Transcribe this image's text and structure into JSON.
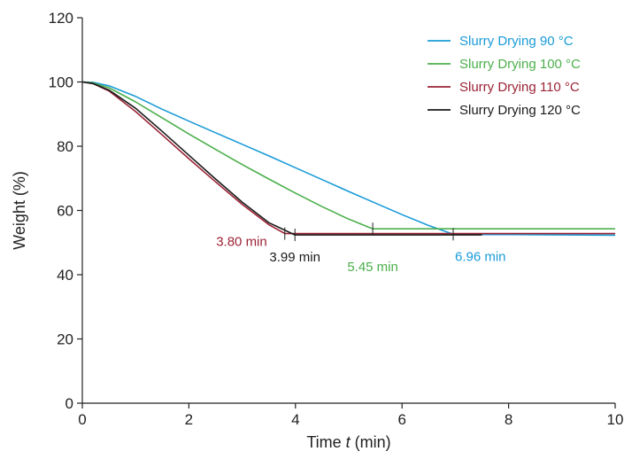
{
  "chart_data": {
    "type": "line",
    "title": "",
    "xlabel_prefix": "Time ",
    "xlabel_var": "t",
    "xlabel_suffix": " (min)",
    "ylabel": "Weight (%)",
    "xlim": [
      0,
      10
    ],
    "ylim": [
      0,
      120
    ],
    "x_ticks": [
      0,
      2,
      4,
      6,
      8,
      10
    ],
    "y_ticks": [
      0,
      20,
      40,
      60,
      80,
      100,
      120
    ],
    "grid": false,
    "legend_position": "top-right",
    "series": [
      {
        "name": "Slurry Drying 90 °C",
        "color": "#1a9bd7",
        "x": [
          0,
          0.2,
          0.5,
          1,
          1.5,
          2,
          2.5,
          3,
          3.5,
          4,
          4.5,
          5,
          5.5,
          6,
          6.5,
          6.96,
          7.5,
          8,
          9,
          10
        ],
        "y": [
          100,
          99.9,
          98.8,
          95.5,
          91.5,
          87.8,
          84.2,
          80.6,
          77,
          73.3,
          69.6,
          65.9,
          62.3,
          58.7,
          55.3,
          52.6,
          52.5,
          52.5,
          52.4,
          52.3
        ]
      },
      {
        "name": "Slurry Drying 100 °C",
        "color": "#4caf4c",
        "x": [
          0,
          0.2,
          0.5,
          1,
          1.5,
          2,
          2.5,
          3,
          3.5,
          4,
          4.5,
          5,
          5.45,
          6,
          7,
          8,
          9,
          10
        ],
        "y": [
          100,
          99.7,
          98.2,
          93.8,
          88.8,
          83.8,
          79,
          74.3,
          69.8,
          65.4,
          61.2,
          57.3,
          54.3,
          54.3,
          54.3,
          54.3,
          54.3,
          54.3
        ]
      },
      {
        "name": "Slurry Drying 110 °C",
        "color": "#9b2335",
        "x": [
          0,
          0.2,
          0.5,
          1,
          1.5,
          2,
          2.5,
          3,
          3.5,
          3.8,
          4.5,
          5,
          6,
          7,
          8,
          9,
          10
        ],
        "y": [
          100,
          99.5,
          97.2,
          90.8,
          83.5,
          76.1,
          68.9,
          61.9,
          55.6,
          52.8,
          52.8,
          52.8,
          52.8,
          52.8,
          52.8,
          52.8,
          52.8
        ]
      },
      {
        "name": "Slurry Drying 120 °C",
        "color": "#1a1a1a",
        "x": [
          0,
          0.2,
          0.5,
          1,
          1.5,
          2,
          2.5,
          3,
          3.5,
          3.99,
          4.5,
          5,
          6,
          7,
          7.5
        ],
        "y": [
          100,
          99.5,
          97.5,
          91.8,
          84.6,
          77.2,
          69.8,
          62.6,
          56.2,
          52.4,
          52.4,
          52.4,
          52.4,
          52.4,
          52.4
        ]
      }
    ],
    "annotations": [
      {
        "text": "3.80 min",
        "x": 3.8,
        "y": 52.8,
        "color": "#9b2335"
      },
      {
        "text": "3.99 min",
        "x": 3.99,
        "y": 52.4,
        "color": "#1a1a1a"
      },
      {
        "text": "5.45 min",
        "x": 5.45,
        "y": 54.3,
        "color": "#4caf4c"
      },
      {
        "text": "6.96 min",
        "x": 6.96,
        "y": 52.6,
        "color": "#1a9bd7"
      }
    ]
  }
}
